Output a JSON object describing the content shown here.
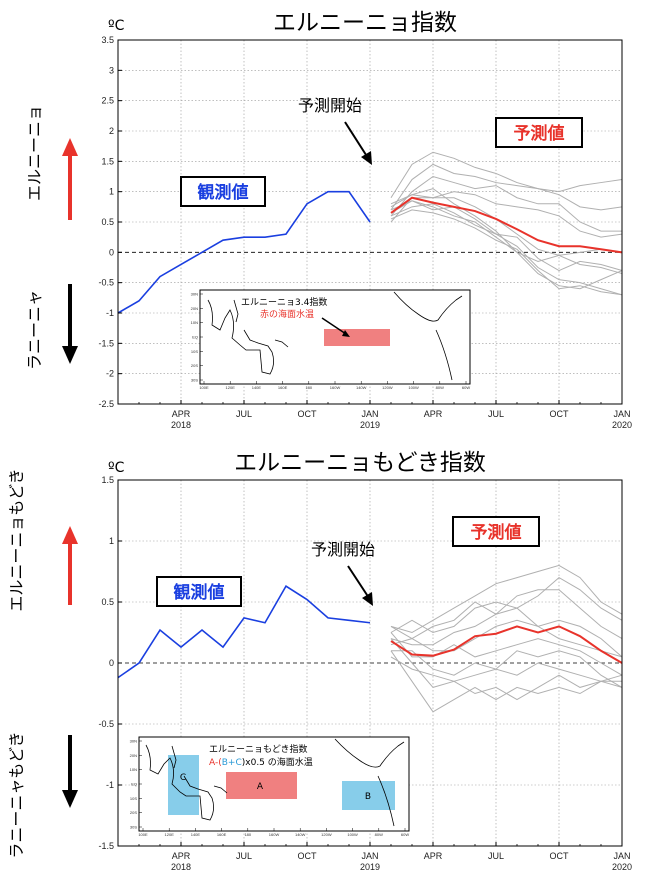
{
  "chart_data": [
    {
      "type": "line",
      "title": "エルニーニョ指数",
      "unit": "ºC",
      "ylim": [
        -2.5,
        3.5
      ],
      "yticks": [
        3.5,
        3,
        2.5,
        2,
        1.5,
        1,
        0.5,
        0,
        -0.5,
        -1,
        -1.5,
        -2,
        -2.5
      ],
      "ytick_labels": [
        "3.5",
        "3",
        "2.5",
        "2",
        "1.5",
        "1",
        "0.5",
        "0",
        "-0.5",
        "-1",
        "-1.5",
        "-2",
        "-2.5"
      ],
      "xlim": [
        0,
        24
      ],
      "xticks": [
        3,
        6,
        9,
        12,
        15,
        18,
        21,
        24
      ],
      "xtick_labels": [
        "APR",
        "JUL",
        "OCT",
        "JAN",
        "APR",
        "JUL",
        "OCT",
        "JAN"
      ],
      "year_labels": [
        {
          "x": 3,
          "label": "2018"
        },
        {
          "x": 12,
          "label": "2019"
        },
        {
          "x": 24,
          "label": "2020"
        }
      ],
      "grid": true,
      "observed": {
        "name": "観測値",
        "color": "#1a3fe0",
        "x": [
          0,
          1,
          2,
          3,
          4,
          5,
          6,
          7,
          8,
          9,
          10,
          11,
          12
        ],
        "y": [
          -1.0,
          -0.8,
          -0.4,
          -0.2,
          0.0,
          0.2,
          0.25,
          0.25,
          0.3,
          0.8,
          1.0,
          1.0,
          0.5
        ]
      },
      "forecast_mean": {
        "name": "予測値",
        "color": "#e8332b",
        "x": [
          13,
          14,
          15,
          16,
          17,
          18,
          19,
          20,
          21,
          22,
          23,
          24
        ],
        "y": [
          0.65,
          0.9,
          0.82,
          0.75,
          0.68,
          0.55,
          0.38,
          0.2,
          0.1,
          0.1,
          0.05,
          0.0
        ]
      },
      "ensemble_color": "#b0b0b0",
      "ensemble": [
        [
          0.9,
          1.45,
          1.65,
          1.55,
          1.4,
          1.3,
          1.15,
          1.05,
          1.0,
          1.1,
          1.15,
          1.2
        ],
        [
          0.7,
          1.2,
          1.45,
          1.3,
          1.25,
          1.15,
          1.1,
          1.05,
          0.95,
          0.75,
          0.7,
          0.75
        ],
        [
          0.6,
          1.0,
          1.25,
          1.15,
          1.05,
          1.1,
          0.9,
          0.8,
          0.8,
          0.5,
          0.35,
          0.35
        ],
        [
          0.75,
          0.95,
          0.9,
          1.0,
          0.95,
          0.8,
          0.75,
          0.7,
          0.6,
          0.35,
          0.25,
          0.3
        ],
        [
          0.5,
          0.9,
          0.9,
          0.9,
          0.75,
          0.55,
          0.3,
          0.05,
          -0.05,
          0.0,
          0.05,
          0.0
        ],
        [
          0.8,
          0.95,
          1.05,
          0.8,
          0.6,
          0.35,
          0.0,
          -0.35,
          -0.55,
          -0.6,
          -0.45,
          -0.3
        ],
        [
          0.65,
          0.85,
          0.7,
          0.75,
          0.55,
          0.3,
          0.1,
          -0.25,
          -0.45,
          -0.5,
          -0.6,
          -0.7
        ],
        [
          0.6,
          0.75,
          0.8,
          0.65,
          0.45,
          0.3,
          0.25,
          -0.1,
          -0.3,
          -0.15,
          -0.2,
          -0.3
        ],
        [
          0.7,
          0.85,
          0.75,
          0.6,
          0.5,
          0.25,
          0.0,
          -0.15,
          -0.05,
          -0.2,
          -0.25,
          -0.35
        ],
        [
          0.55,
          0.7,
          0.65,
          0.55,
          0.4,
          0.2,
          0.05,
          -0.3,
          -0.6,
          -0.55,
          -0.65,
          -0.7
        ]
      ],
      "annotations": {
        "start": "予測開始",
        "warm": "エルニーニョ",
        "cold": "ラニーニャ"
      },
      "inset": {
        "title": "エルニーニョ3.4指数",
        "subtitle": "赤の海面水温",
        "lat_labels": [
          "30N",
          "20N",
          "10N",
          "EQ",
          "10S",
          "20S",
          "30S"
        ],
        "lon_labels": [
          "100E",
          "120E",
          "140E",
          "160E",
          "180",
          "160W",
          "140W",
          "120W",
          "100W",
          "80W",
          "60W"
        ]
      }
    },
    {
      "type": "line",
      "title": "エルニーニョもどき指数",
      "unit": "ºC",
      "ylim": [
        -1.5,
        1.5
      ],
      "yticks": [
        1.5,
        1,
        0.5,
        0,
        -0.5,
        -1,
        -1.5
      ],
      "ytick_labels": [
        "1.5",
        "1",
        "0.5",
        "0",
        "-0.5",
        "-1",
        "-1.5"
      ],
      "xlim": [
        0,
        24
      ],
      "xticks": [
        3,
        6,
        9,
        12,
        15,
        18,
        21,
        24
      ],
      "xtick_labels": [
        "APR",
        "JUL",
        "OCT",
        "JAN",
        "APR",
        "JUL",
        "OCT",
        "JAN"
      ],
      "year_labels": [
        {
          "x": 3,
          "label": "2018"
        },
        {
          "x": 12,
          "label": "2019"
        },
        {
          "x": 24,
          "label": "2020"
        }
      ],
      "grid": true,
      "observed": {
        "name": "観測値",
        "color": "#1a3fe0",
        "x": [
          0,
          1,
          2,
          3,
          4,
          5,
          6,
          7,
          8,
          9,
          10,
          11,
          12
        ],
        "y": [
          -0.12,
          0.0,
          0.27,
          0.13,
          0.27,
          0.13,
          0.37,
          0.33,
          0.63,
          0.52,
          0.37,
          0.35,
          0.33
        ]
      },
      "forecast_mean": {
        "name": "予測値",
        "color": "#e8332b",
        "x": [
          13,
          14,
          15,
          16,
          17,
          18,
          19,
          20,
          21,
          22,
          23,
          24
        ],
        "y": [
          0.18,
          0.07,
          0.06,
          0.11,
          0.22,
          0.24,
          0.3,
          0.25,
          0.3,
          0.22,
          0.1,
          0.0
        ]
      },
      "ensemble_color": "#b0b0b0",
      "ensemble": [
        [
          0.3,
          0.25,
          0.35,
          0.45,
          0.55,
          0.65,
          0.7,
          0.75,
          0.8,
          0.7,
          0.5,
          0.4
        ],
        [
          0.25,
          0.35,
          0.25,
          0.3,
          0.45,
          0.5,
          0.45,
          0.55,
          0.7,
          0.6,
          0.45,
          0.35
        ],
        [
          0.2,
          0.15,
          0.15,
          0.25,
          0.3,
          0.4,
          0.55,
          0.6,
          0.6,
          0.45,
          0.3,
          0.2
        ],
        [
          0.15,
          0.2,
          0.1,
          0.1,
          0.2,
          0.3,
          0.35,
          0.3,
          0.35,
          0.3,
          0.2,
          0.05
        ],
        [
          0.25,
          0.05,
          0.05,
          0.15,
          0.05,
          0.1,
          0.15,
          0.2,
          0.15,
          0.1,
          0.0,
          -0.1
        ],
        [
          0.1,
          0.1,
          -0.05,
          -0.1,
          0.0,
          -0.05,
          0.1,
          0.05,
          0.1,
          0.05,
          -0.1,
          -0.2
        ],
        [
          0.2,
          0.0,
          -0.2,
          -0.15,
          -0.1,
          -0.05,
          -0.1,
          0.0,
          -0.05,
          -0.1,
          -0.15,
          -0.2
        ],
        [
          0.1,
          -0.15,
          -0.4,
          -0.3,
          -0.2,
          -0.3,
          -0.2,
          -0.25,
          -0.2,
          -0.25,
          -0.15,
          -0.15
        ],
        [
          0.05,
          -0.05,
          -0.1,
          -0.15,
          -0.25,
          -0.2,
          -0.3,
          -0.2,
          -0.1,
          -0.2,
          -0.15,
          -0.1
        ],
        [
          0.3,
          0.2,
          0.3,
          0.35,
          0.5,
          0.4,
          0.45,
          0.3,
          0.2,
          0.15,
          0.1,
          0.05
        ]
      ],
      "annotations": {
        "start": "予測開始",
        "warm": "エルニーニョもどき",
        "cold": "ラニーニャもどき"
      },
      "inset": {
        "title": "エルニーニョもどき指数",
        "formula_a": "A-(",
        "formula_b": "B",
        "formula_plus": "+",
        "formula_c": "C",
        "formula_end": ")x0.5 の海面水温",
        "box_a": "A",
        "box_b": "B",
        "box_c": "C",
        "lat_labels": [
          "30N",
          "20N",
          "10N",
          "EQ",
          "10S",
          "20S",
          "30S"
        ],
        "lon_labels": [
          "100E",
          "120E",
          "140E",
          "160E",
          "180",
          "160W",
          "140W",
          "120W",
          "100W",
          "80W",
          "60W"
        ]
      }
    }
  ],
  "colors": {
    "observed": "#1a3fe0",
    "forecast": "#e8332b",
    "ensemble": "#b0b0b0",
    "warm_arrow": "#e8332b",
    "cold_arrow": "#000000",
    "box_a": "#f08080",
    "box_bc": "#87cdea"
  }
}
